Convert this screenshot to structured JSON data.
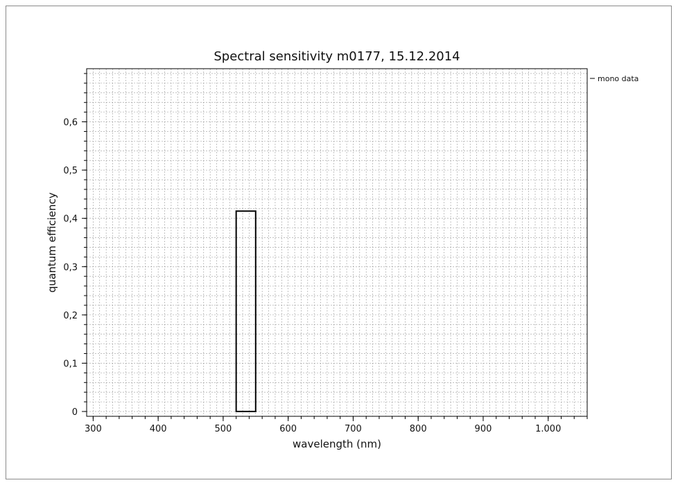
{
  "chart_data": {
    "type": "bar",
    "title": "Spectral sensitivity m0177, 15.12.2014",
    "xlabel": "wavelength (nm)",
    "ylabel": "quantum efficiency",
    "xlim": [
      290,
      1060
    ],
    "ylim": [
      -0.01,
      0.71
    ],
    "x_ticks": [
      300,
      400,
      500,
      600,
      700,
      800,
      900,
      1000
    ],
    "x_tick_labels": [
      "300",
      "400",
      "500",
      "600",
      "700",
      "800",
      "900",
      "1.000"
    ],
    "y_ticks": [
      0,
      0.1,
      0.2,
      0.3,
      0.4,
      0.5,
      0.6
    ],
    "y_tick_labels": [
      "0",
      "0,1",
      "0,2",
      "0,3",
      "0,4",
      "0,5",
      "0,6"
    ],
    "grid": true,
    "legend_position": "right-top",
    "series": [
      {
        "name": "mono data",
        "color": "#000000",
        "bars": [
          {
            "x_start": 520,
            "x_end": 550,
            "value": 0.415
          }
        ]
      }
    ]
  }
}
